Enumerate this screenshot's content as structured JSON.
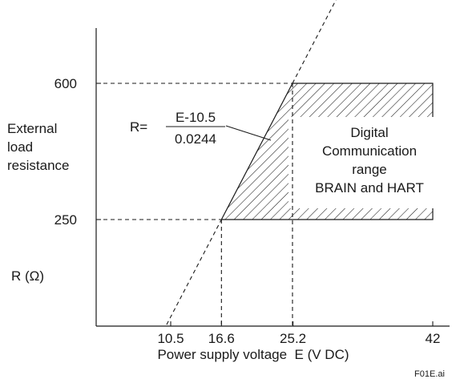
{
  "chart_data": {
    "type": "line",
    "xlabel": "Power supply voltage  E (V DC)",
    "ylabel_lines": [
      "External",
      "load",
      "resistance"
    ],
    "ylabel_unit": "R (Ω)",
    "x_ticks": [
      10.5,
      16.6,
      25.2,
      42
    ],
    "x_tick_labels": [
      "10.5",
      "16.6",
      "25.2",
      "42"
    ],
    "y_ticks": [
      250,
      600
    ],
    "y_tick_labels": [
      "250",
      "600"
    ],
    "xlim": [
      5,
      43
    ],
    "ylim": [
      0,
      870
    ],
    "formula": {
      "lhs": "R=",
      "numerator": "E-10.5",
      "denominator": "0.0244",
      "slope": 40.9836,
      "x_intercept": 10.5
    },
    "region": {
      "label_lines": [
        "Digital",
        "Communication",
        "range",
        "BRAIN and HART"
      ],
      "r_min": 250,
      "r_max": 600,
      "e_max": 42
    },
    "footnote": "F01E.ai"
  }
}
